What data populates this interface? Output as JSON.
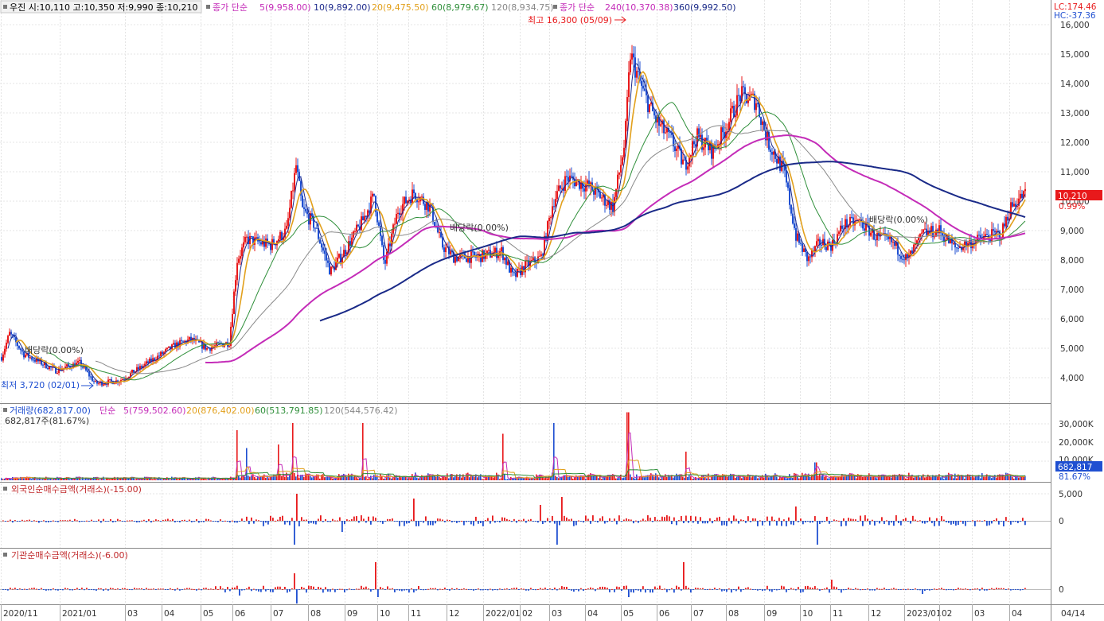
{
  "price_legend": {
    "ohlc": "우진 시:10,110 고:10,350 저:9,990 종:10,210",
    "ma_title": "종가 단순",
    "ma5": "5(9,958.00)",
    "ma10": "10(9,892.00)",
    "ma20": "20(9,475.50)",
    "ma60": "60(8,979.67)",
    "ma120": "120(8,934.75)",
    "ma_title2": "종가 단순",
    "ma240": "240(10,370.38)",
    "ma360": "360(9,992.50)"
  },
  "corner": {
    "lc": "LC:174.46",
    "hc": "HC:-37.36"
  },
  "price_axis": {
    "ticks": [
      "16,000",
      "15,000",
      "14,000",
      "13,000",
      "12,000",
      "11,000",
      "10,000",
      "9,000",
      "8,000",
      "7,000",
      "6,000",
      "5,000",
      "4,000"
    ],
    "current": "10,210",
    "change": "0.99%"
  },
  "annotations": {
    "high": "최고 16,300 (05/09)",
    "low": "최저 3,720 (02/01)",
    "dividend1": "배당락(0.00%)",
    "dividend2": "배당락(0.00%)",
    "dividend3": "배당락(0.00%)"
  },
  "volume_legend": {
    "vol": "거래량(682,817.00)",
    "title": "단순",
    "ma5": "5(759,502.60)",
    "ma20": "20(876,402.00)",
    "ma60": "60(513,791.85)",
    "ma120": "120(544,576.42)",
    "sub": "682,817주(81.67%)",
    "ticks": [
      "30,000K",
      "20,000K",
      "10,000K"
    ],
    "current": "682,817",
    "pct": "81.67%"
  },
  "foreign_legend": {
    "title": "외국인순매수금액(거래소)(-15.00)",
    "ticks": [
      "5,000",
      "0"
    ]
  },
  "inst_legend": {
    "title": "기관순매수금액(거래소)(-6.00)",
    "ticks": [
      "0"
    ]
  },
  "x_axis": {
    "labels": [
      "2020/11",
      "2021/01",
      "03",
      "04",
      "05",
      "06",
      "07",
      "08",
      "09",
      "10",
      "11",
      "12",
      "2022/01",
      "02",
      "03",
      "04",
      "05",
      "06",
      "07",
      "08",
      "09",
      "10",
      "11",
      "12",
      "2023/01",
      "02",
      "03",
      "04",
      "04/14"
    ]
  },
  "colors": {
    "up": "#e8191b",
    "down": "#1f4fd1",
    "ma5": "#1e2a8c",
    "ma20": "#e2a01c",
    "ma60": "#2f8f3a",
    "ma120": "#8a8a8a",
    "ma240": "#c42cb8",
    "ma360": "#1a2a88"
  },
  "chart_data": {
    "type": "candlestick",
    "x": [
      "2020/11",
      "2021/01",
      "03",
      "04",
      "05",
      "06",
      "07",
      "08",
      "09",
      "10",
      "11",
      "12",
      "2022/01",
      "02",
      "03",
      "04",
      "05",
      "06",
      "07",
      "08",
      "09",
      "10",
      "11",
      "12",
      "2023/01",
      "02",
      "03",
      "04"
    ],
    "close_approx": [
      4700,
      4200,
      3900,
      4500,
      5100,
      8600,
      9400,
      7600,
      8200,
      8900,
      9900,
      8100,
      8200,
      7800,
      11200,
      10000,
      13600,
      12400,
      11800,
      13200,
      11000,
      8200,
      9400,
      8600,
      8300,
      8700,
      8600,
      10210
    ],
    "high": 16300,
    "low": 3720,
    "ylim": [
      3500,
      16300
    ]
  }
}
